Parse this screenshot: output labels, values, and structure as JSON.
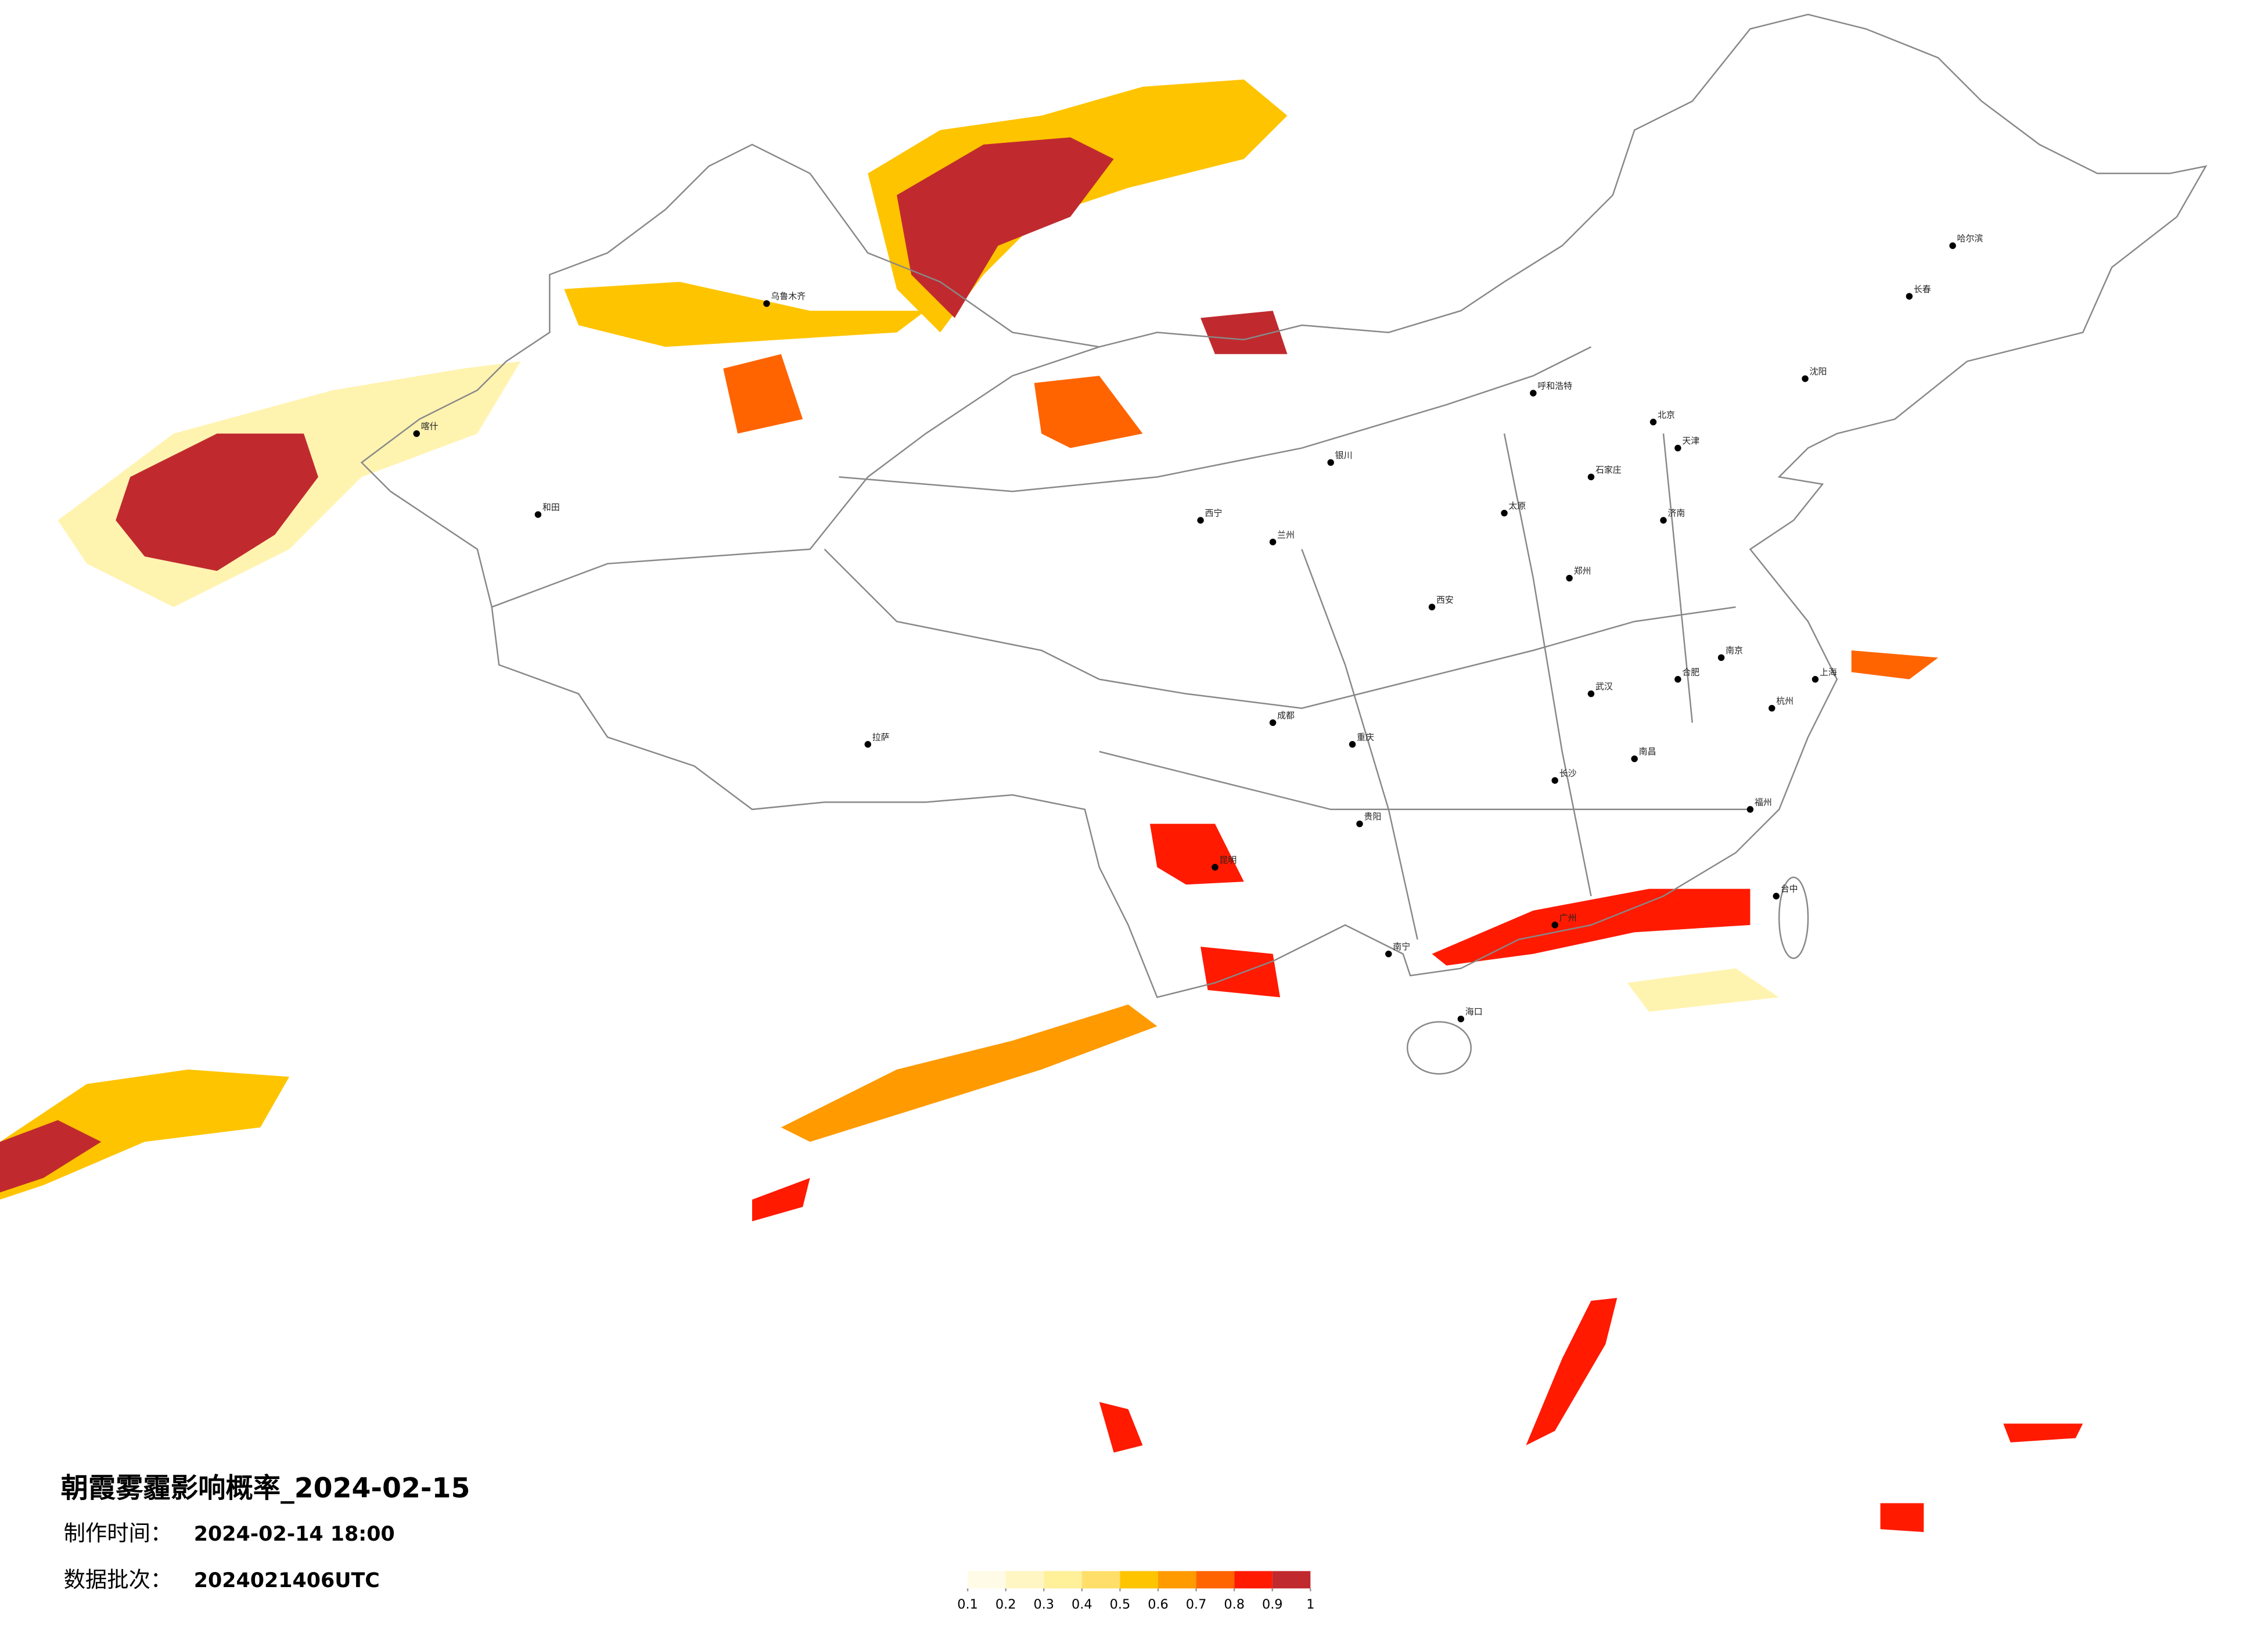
{
  "map": {
    "title": "朝霞雾霾影响概率_2024-02-15",
    "time_label": "制作时间：",
    "time_value": "2024-02-14 18:00",
    "batch_label": "数据批次：",
    "batch_value": "2024021406UTC",
    "legend": {
      "ticks": [
        0.1,
        0.2,
        0.3,
        0.4,
        0.5,
        0.6,
        0.7,
        0.8,
        0.9,
        1
      ],
      "colors": [
        "#fffbe6",
        "#fff6c4",
        "#fff09a",
        "#ffdf6a",
        "#ffc400",
        "#ff9a00",
        "#ff6400",
        "#ff1a00",
        "#c02a2e"
      ]
    },
    "cities": [
      "北京",
      "天津",
      "石家庄",
      "太原",
      "呼和浩特",
      "沈阳",
      "长春",
      "哈尔滨",
      "济南",
      "郑州",
      "西安",
      "兰州",
      "西宁",
      "银川",
      "乌鲁木齐",
      "拉萨",
      "成都",
      "重庆",
      "贵阳",
      "昆明",
      "南宁",
      "广州",
      "海口",
      "长沙",
      "武汉",
      "南昌",
      "福州",
      "杭州",
      "上海",
      "南京",
      "合肥",
      "和田",
      "喀什",
      "台中"
    ]
  }
}
